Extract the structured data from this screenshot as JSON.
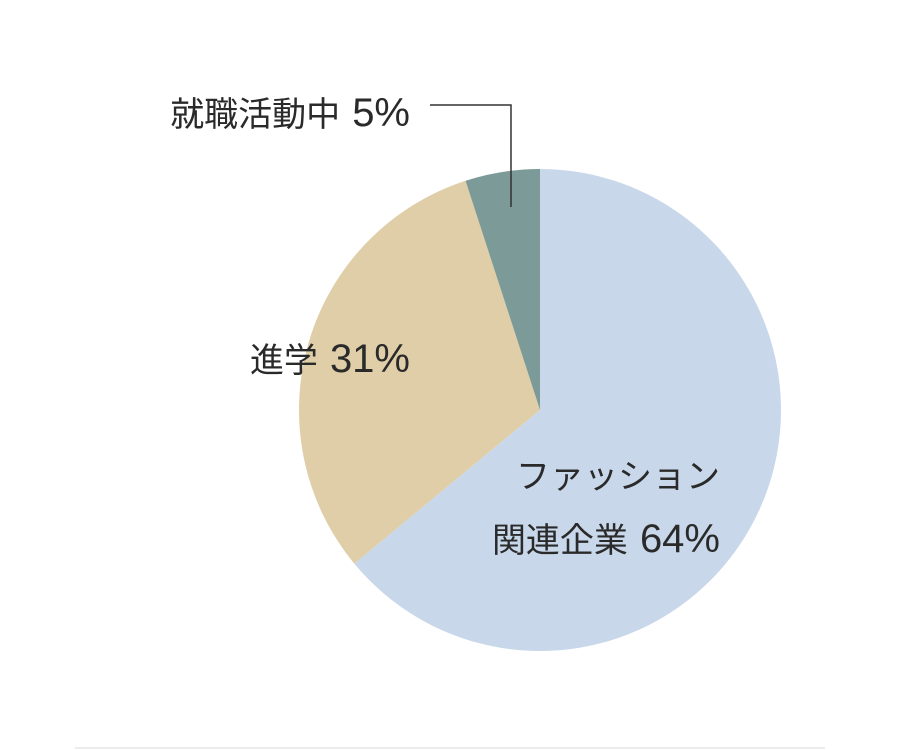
{
  "chart_data": {
    "type": "pie",
    "categories": [
      "ファッション\n関連企業",
      "進学",
      "就職活動中"
    ],
    "values": [
      64,
      31,
      5
    ],
    "value_labels": [
      "64%",
      "31%",
      "5%"
    ],
    "colors": [
      "#c8d8ea",
      "#dfcea8",
      "#7c9b98"
    ]
  }
}
